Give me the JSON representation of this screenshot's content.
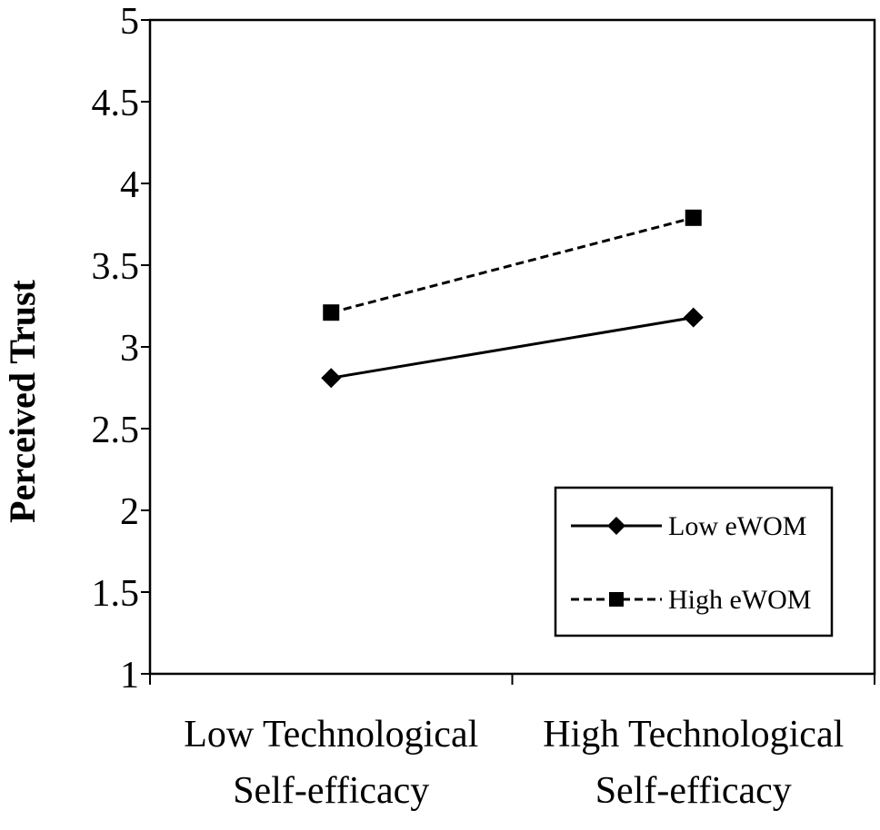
{
  "chart_data": {
    "type": "line",
    "title": "",
    "xlabel": "",
    "ylabel": "Perceived Trust",
    "categories": [
      [
        "Low Technological",
        "Self-efficacy"
      ],
      [
        "High Technological",
        "Self-efficacy"
      ]
    ],
    "ylim": [
      1,
      5
    ],
    "yticks": [
      "1",
      "1.5",
      "2",
      "2.5",
      "3",
      "3.5",
      "4",
      "4.5",
      "5"
    ],
    "grid": false,
    "legend_position": "bottom-right",
    "series": [
      {
        "name": "Low eWOM",
        "values": [
          2.81,
          3.18
        ],
        "marker": "diamond",
        "line": "solid",
        "color": "#000000"
      },
      {
        "name": "High eWOM",
        "values": [
          3.21,
          3.79
        ],
        "marker": "square",
        "line": "dashed",
        "color": "#000000"
      }
    ]
  }
}
